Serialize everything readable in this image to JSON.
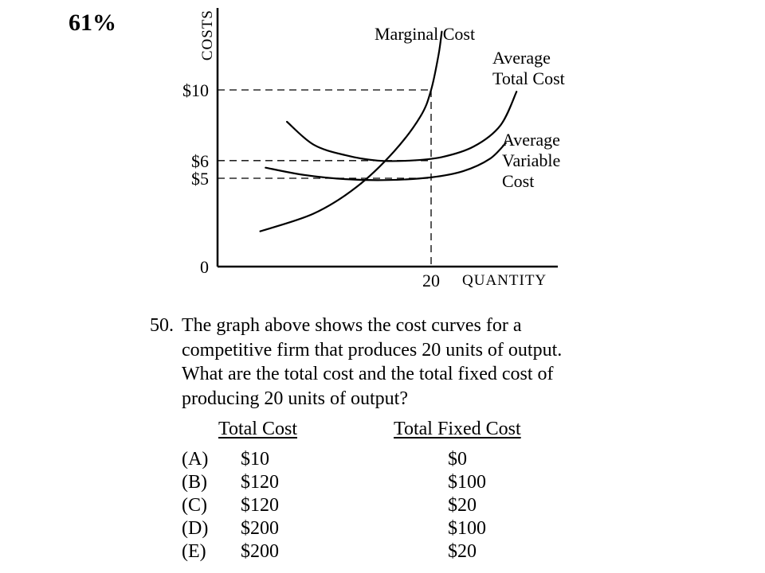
{
  "percent_label": "61%",
  "chart_data": {
    "type": "line",
    "ylabel": "COSTS",
    "xlabel": "QUANTITY",
    "y_ticks": [
      {
        "value": 0,
        "label": "0"
      },
      {
        "value": 5,
        "label": "$5"
      },
      {
        "value": 6,
        "label": "$6"
      },
      {
        "value": 10,
        "label": "$10"
      }
    ],
    "x_ticks": [
      {
        "value": 20,
        "label": "20"
      }
    ],
    "reference_lines": [
      {
        "axis": "y",
        "value": 10
      },
      {
        "axis": "y",
        "value": 6
      },
      {
        "axis": "y",
        "value": 5
      },
      {
        "axis": "x",
        "value": 20
      }
    ],
    "series": [
      {
        "name": "Marginal Cost",
        "label_lines": [
          "Marginal Cost"
        ],
        "points": [
          [
            4,
            2
          ],
          [
            9,
            3
          ],
          [
            13,
            4.5
          ],
          [
            16.5,
            6.5
          ],
          [
            19,
            8.5
          ],
          [
            20,
            10
          ],
          [
            20.7,
            12
          ],
          [
            21,
            13.3
          ]
        ]
      },
      {
        "name": "Average Total Cost",
        "label_lines": [
          "Average",
          "Total Cost"
        ],
        "points": [
          [
            6.5,
            8.2
          ],
          [
            9,
            6.9
          ],
          [
            12,
            6.3
          ],
          [
            15,
            6.0
          ],
          [
            18,
            6.0
          ],
          [
            21,
            6.2
          ],
          [
            24,
            6.8
          ],
          [
            26.5,
            8.0
          ],
          [
            28,
            9.9
          ]
        ]
      },
      {
        "name": "Average Variable Cost",
        "label_lines": [
          "Average",
          "Variable",
          "Cost"
        ],
        "points": [
          [
            4.5,
            5.6
          ],
          [
            8,
            5.2
          ],
          [
            12,
            4.95
          ],
          [
            16,
            4.9
          ],
          [
            20,
            5.05
          ],
          [
            23,
            5.4
          ],
          [
            25.5,
            6.1
          ],
          [
            27,
            7.0
          ]
        ]
      }
    ]
  },
  "question": {
    "number": "50.",
    "lines": [
      "The graph above shows the cost curves for a",
      "competitive firm that produces 20 units of output.",
      "What are the total cost and the total fixed cost of",
      "producing 20 units of output?"
    ]
  },
  "table": {
    "headers": [
      "Total Cost",
      "Total Fixed Cost"
    ],
    "options": [
      {
        "letter": "(A)",
        "total_cost": "$10",
        "total_fixed_cost": "$0"
      },
      {
        "letter": "(B)",
        "total_cost": "$120",
        "total_fixed_cost": "$100"
      },
      {
        "letter": "(C)",
        "total_cost": "$120",
        "total_fixed_cost": "$20"
      },
      {
        "letter": "(D)",
        "total_cost": "$200",
        "total_fixed_cost": "$100"
      },
      {
        "letter": "(E)",
        "total_cost": "$200",
        "total_fixed_cost": "$20"
      }
    ]
  }
}
